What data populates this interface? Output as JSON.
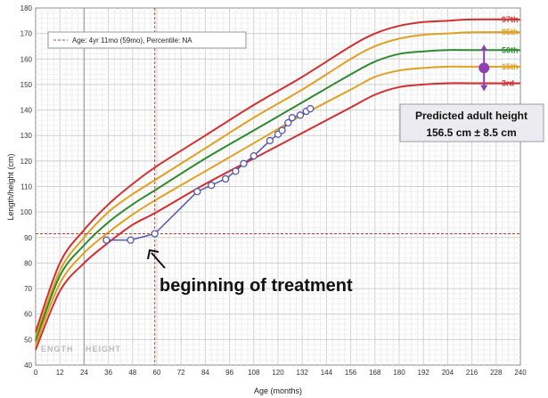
{
  "chart_data": {
    "type": "line",
    "xlabel": "Age (months)",
    "ylabel": "Length/height (cm)",
    "xlim": [
      0,
      240
    ],
    "ylim": [
      40,
      180
    ],
    "x_ticks": [
      0,
      12,
      24,
      36,
      48,
      60,
      72,
      84,
      96,
      108,
      120,
      132,
      144,
      156,
      168,
      180,
      192,
      204,
      216,
      228,
      240
    ],
    "y_ticks": [
      40,
      50,
      60,
      70,
      80,
      90,
      100,
      110,
      120,
      130,
      140,
      150,
      160,
      170,
      180
    ],
    "grid": true,
    "percentile_curves": [
      {
        "name": "97th",
        "color": "#d42f2f",
        "x": [
          0,
          12,
          24,
          36,
          48,
          60,
          84,
          108,
          132,
          156,
          168,
          180,
          192,
          204,
          216,
          240
        ],
        "y": [
          53,
          80,
          93,
          103,
          111,
          118,
          130,
          142,
          153,
          165,
          170,
          173,
          174.5,
          175,
          175.5,
          175.5
        ]
      },
      {
        "name": "85th",
        "color": "#e0a020",
        "x": [
          0,
          12,
          24,
          36,
          48,
          60,
          84,
          108,
          132,
          156,
          168,
          180,
          192,
          204,
          216,
          240
        ],
        "y": [
          51,
          77,
          90,
          100,
          107,
          113,
          125,
          137,
          148,
          160,
          165,
          168,
          169.5,
          170,
          170.5,
          170.5
        ]
      },
      {
        "name": "50th",
        "color": "#2e8b2e",
        "x": [
          0,
          12,
          24,
          36,
          48,
          60,
          84,
          108,
          132,
          156,
          168,
          180,
          192,
          204,
          216,
          240
        ],
        "y": [
          49.5,
          75,
          87,
          96,
          103,
          109,
          121,
          132,
          143,
          154,
          159,
          162,
          163,
          163.5,
          163.5,
          163.5
        ]
      },
      {
        "name": "15th",
        "color": "#e0a020",
        "x": [
          0,
          12,
          24,
          36,
          48,
          60,
          84,
          108,
          132,
          156,
          168,
          180,
          192,
          204,
          216,
          240
        ],
        "y": [
          48,
          72,
          84,
          92,
          99,
          105,
          116,
          127,
          138,
          148,
          153,
          155.5,
          156.5,
          157,
          157,
          157
        ]
      },
      {
        "name": "3rd",
        "color": "#d42f2f",
        "x": [
          0,
          12,
          24,
          36,
          48,
          60,
          84,
          108,
          132,
          156,
          168,
          180,
          192,
          204,
          216,
          240
        ],
        "y": [
          46,
          69,
          80,
          88,
          95,
          100,
          111,
          121,
          131,
          141,
          146,
          149,
          150,
          150.5,
          150.5,
          150.5
        ]
      }
    ],
    "series": [
      {
        "name": "",
        "color": "#5555aa",
        "x": [
          35,
          47,
          59,
          80,
          87,
          94,
          99,
          103,
          108,
          116,
          120,
          122,
          125,
          127,
          131,
          134,
          136
        ],
        "y": [
          89,
          89,
          91.5,
          108,
          110.5,
          113,
          116,
          119,
          122,
          128,
          130.5,
          132,
          135,
          137,
          138,
          139.5,
          140.5
        ]
      }
    ],
    "cursor": {
      "x": 59,
      "y": 91.5
    },
    "phase_divider_x": 24,
    "predicted": {
      "center": 156.5,
      "low": 148,
      "high": 165,
      "x": 222
    }
  },
  "legend": {
    "text": "Age: 4yr 11mo (59mo), Percentile: NA"
  },
  "phases": {
    "left": "ENGTH",
    "right": "HEIGHT"
  },
  "annotation": {
    "text": "beginning of treatment"
  },
  "prediction_box": {
    "line1": "Predicted adult height",
    "line2": "156.5 cm ± 8.5 cm"
  }
}
